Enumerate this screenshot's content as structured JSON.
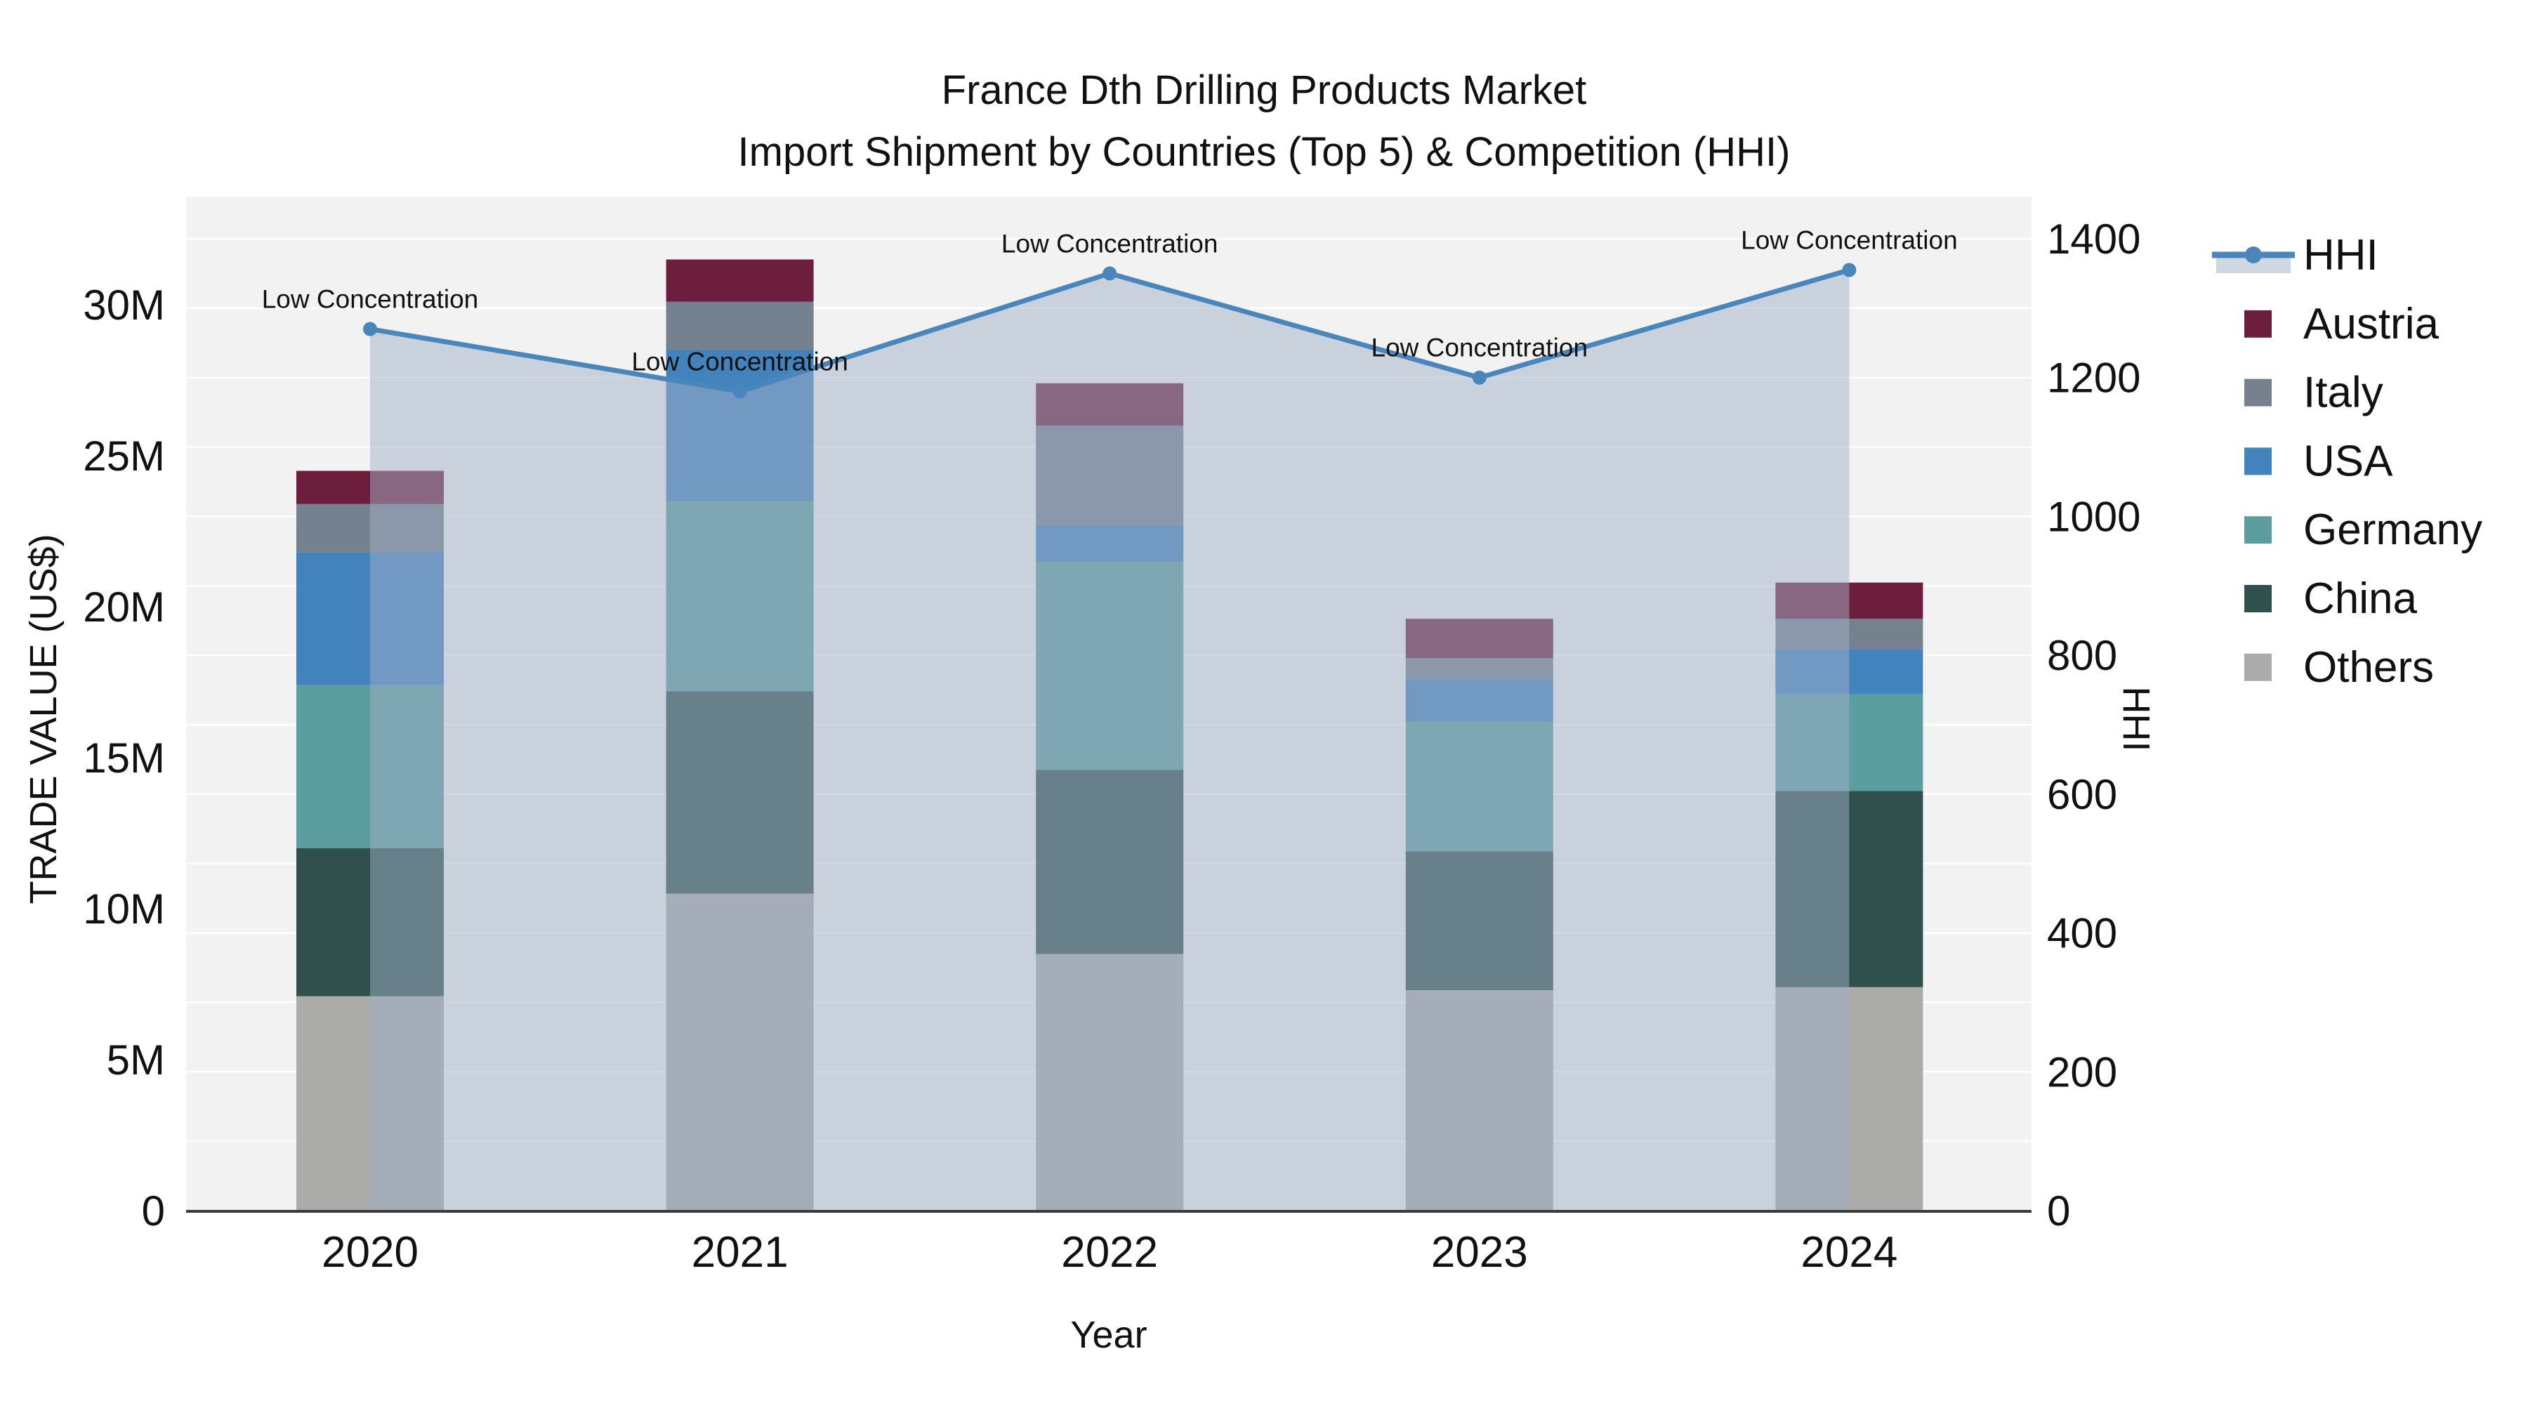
{
  "title": {
    "line1": "France Dth Drilling Products Market",
    "line2": "Import Shipment by Countries (Top 5) & Competition (HHI)"
  },
  "axes": {
    "left": {
      "title": "TRADE VALUE (US$)",
      "tick_labels": [
        "0",
        "5M",
        "10M",
        "15M",
        "20M",
        "25M",
        "30M"
      ],
      "tick_values_musd": [
        0,
        5,
        10,
        15,
        20,
        25,
        30
      ]
    },
    "right": {
      "title": "HHI",
      "tick_labels": [
        "0",
        "200",
        "400",
        "600",
        "800",
        "1000",
        "1200",
        "1400"
      ],
      "tick_values": [
        0,
        200,
        400,
        600,
        800,
        1000,
        1200,
        1400
      ],
      "range": [
        0,
        1400
      ],
      "grid_step": 100
    },
    "x": {
      "title": "Year"
    }
  },
  "legend": [
    {
      "label": "HHI",
      "type": "line",
      "color": "#4886bb"
    },
    {
      "label": "Austria",
      "type": "swatch",
      "color": "#6e1e3d"
    },
    {
      "label": "Italy",
      "type": "swatch",
      "color": "#75818f"
    },
    {
      "label": "USA",
      "type": "swatch",
      "color": "#4383bd"
    },
    {
      "label": "Germany",
      "type": "swatch",
      "color": "#5c9da0"
    },
    {
      "label": "China",
      "type": "swatch",
      "color": "#30504e"
    },
    {
      "label": "Others",
      "type": "swatch",
      "color": "#abacaa"
    }
  ],
  "colors": {
    "plot_background": "#f2f2f2",
    "gridline": "#ffffff",
    "axis_line": "#3a3a3a",
    "text": "#111111",
    "hhi_line": "#4886bb",
    "hhi_area_fill": "rgba(159,176,197,0.5)"
  },
  "chart_data": {
    "type": "bar+line",
    "title": "France Dth Drilling Products Market — Import Shipment by Countries (Top 5) & Competition (HHI)",
    "categories": [
      "2020",
      "2021",
      "2022",
      "2023",
      "2024"
    ],
    "xlabel": "Year",
    "ylabel": "TRADE VALUE (US$)",
    "y2label": "HHI",
    "ylim_musd": [
      0,
      33.5
    ],
    "y2lim": [
      0,
      1400
    ],
    "legend_position": "right",
    "grid": "horizontal",
    "stack_order_bottom_to_top": [
      "Others",
      "China",
      "Germany",
      "USA",
      "Italy",
      "Austria"
    ],
    "series": [
      {
        "name": "Austria",
        "type": "bar",
        "color": "#6e1e3d",
        "values_musd": [
          1.1,
          1.4,
          1.4,
          1.3,
          1.2
        ]
      },
      {
        "name": "Italy",
        "type": "bar",
        "color": "#75818f",
        "values_musd": [
          1.6,
          1.6,
          3.3,
          0.7,
          1.0
        ]
      },
      {
        "name": "USA",
        "type": "bar",
        "color": "#4383bd",
        "values_musd": [
          4.4,
          5.0,
          1.2,
          1.4,
          1.5
        ]
      },
      {
        "name": "Germany",
        "type": "bar",
        "color": "#5c9da0",
        "values_musd": [
          5.4,
          6.3,
          6.9,
          4.3,
          3.2
        ]
      },
      {
        "name": "China",
        "type": "bar",
        "color": "#30504e",
        "values_musd": [
          4.9,
          6.7,
          6.1,
          4.6,
          6.5
        ]
      },
      {
        "name": "Others",
        "type": "bar",
        "color": "#abacaa",
        "values_musd": [
          7.1,
          10.5,
          8.5,
          7.3,
          7.4
        ]
      }
    ],
    "totals_musd": [
      24.5,
      31.5,
      27.4,
      19.6,
      20.8
    ],
    "hhi": {
      "name": "HHI",
      "type": "line",
      "axis": "right",
      "color": "#4886bb",
      "area_fill": "rgba(159,176,197,0.5)",
      "values": [
        1270,
        1180,
        1350,
        1200,
        1355
      ],
      "point_annotations": [
        "Low Concentration",
        "Low Concentration",
        "Low Concentration",
        "Low Concentration",
        "Low Concentration"
      ]
    }
  }
}
